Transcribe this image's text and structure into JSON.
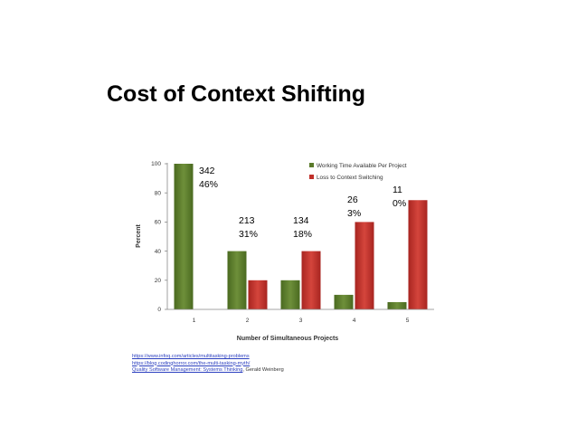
{
  "slide": {
    "title": "Cost of Context Shifting"
  },
  "chart_data": {
    "type": "bar",
    "categories": [
      "1",
      "2",
      "3",
      "4",
      "5"
    ],
    "series": [
      {
        "name": "Working Time Available Per Project",
        "color": "#5a7a2a",
        "values": [
          100,
          40,
          20,
          10,
          5
        ]
      },
      {
        "name": "Loss to Context Switching",
        "color": "#c0302a",
        "values": [
          0,
          20,
          40,
          60,
          75
        ]
      }
    ],
    "xlabel": "Number of Simultaneous Projects",
    "ylabel": "Percent",
    "ylim": [
      0,
      100
    ],
    "yticks": [
      "0",
      "20",
      "40",
      "60",
      "80",
      "100"
    ],
    "legend_position": "top-right",
    "grid": false
  },
  "annotations": [
    {
      "line1": "342",
      "line2": "46%"
    },
    {
      "line1": "213",
      "line2": "31%"
    },
    {
      "line1": "134",
      "line2": "18%"
    },
    {
      "line1": "26",
      "line2": "3%"
    },
    {
      "line1": "11",
      "line2": "0%"
    }
  ],
  "sources": {
    "link1": "https://www.infoq.com/articles/multitasking-problems",
    "link2": "https://blog.codinghorror.com/the-multi-tasking-myth/",
    "link3": "Quality Software Management: Systems Thinking",
    "suffix": ", Gerald Weinberg"
  }
}
